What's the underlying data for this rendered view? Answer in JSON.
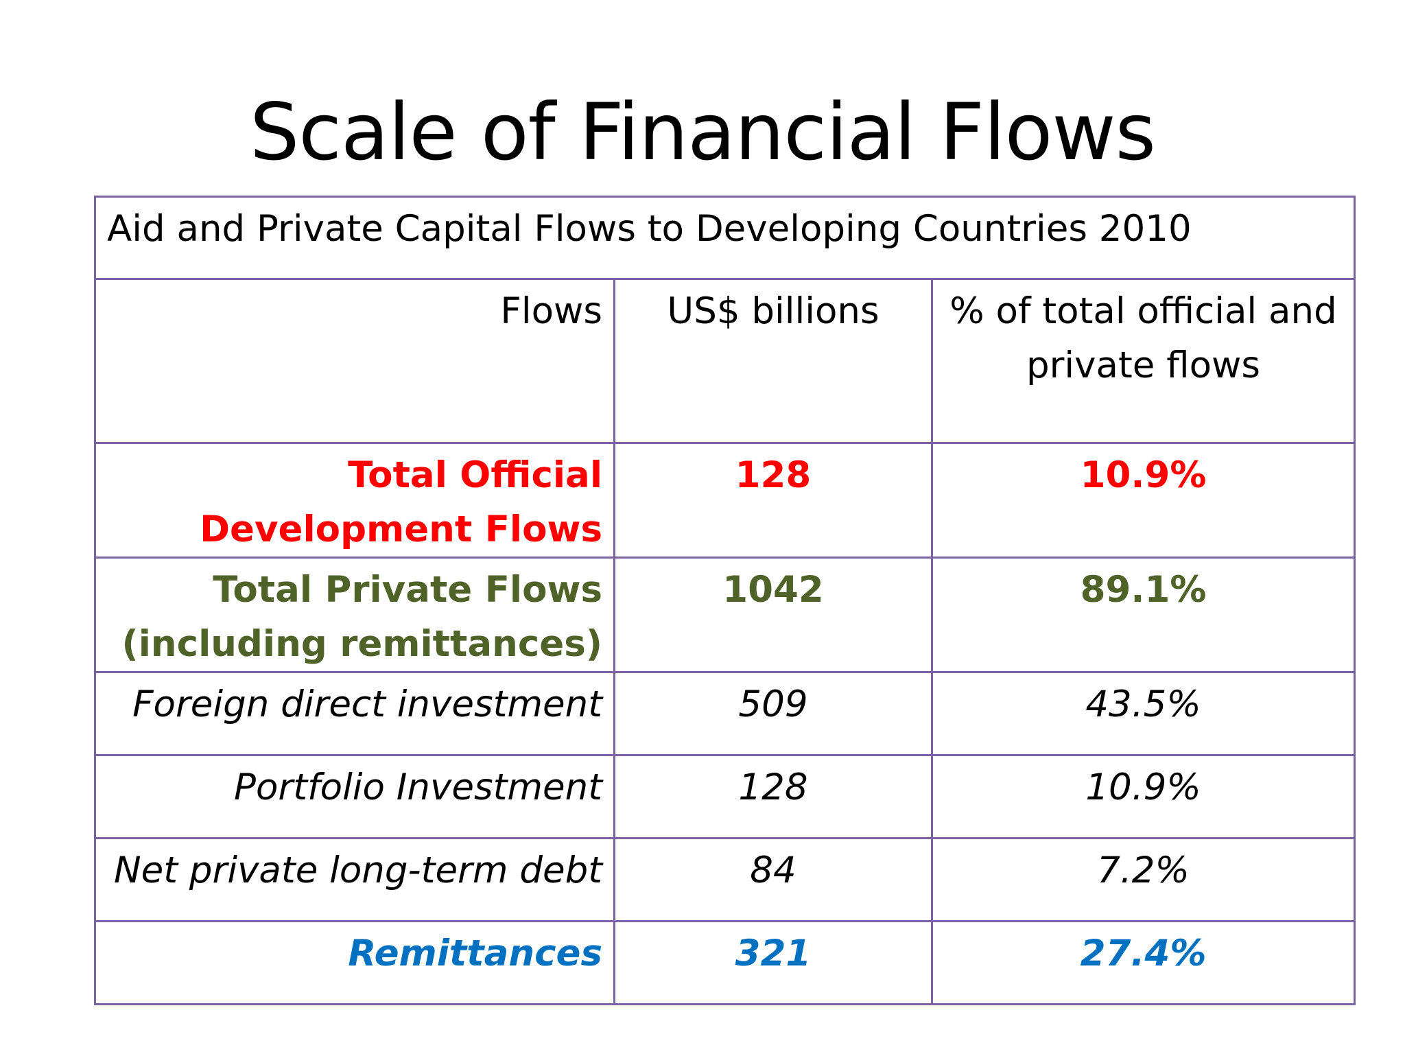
{
  "slide": {
    "title": "Scale of Financial Flows"
  },
  "table": {
    "caption": "Aid and Private Capital Flows to Developing Countries 2010",
    "headers": {
      "flows": "Flows",
      "usd": "US$ billions",
      "pct": "% of total official and private flows"
    },
    "rows": [
      {
        "label": "Total Official Development Flows",
        "usd": "128",
        "pct": "10.9%"
      },
      {
        "label": "Total Private Flows (including remittances)",
        "usd": "1042",
        "pct": "89.1%"
      },
      {
        "label": "Foreign direct investment",
        "usd": "509",
        "pct": "43.5%"
      },
      {
        "label": "Portfolio Investment",
        "usd": "128",
        "pct": "10.9%"
      },
      {
        "label": "Net private long-term debt",
        "usd": "84",
        "pct": "7.2%"
      },
      {
        "label": "Remittances",
        "usd": "321",
        "pct": "27.4%"
      }
    ]
  },
  "colors": {
    "official": "#ff0000",
    "private": "#4f6228",
    "remittances": "#0070c0",
    "border": "#7b62a3"
  }
}
